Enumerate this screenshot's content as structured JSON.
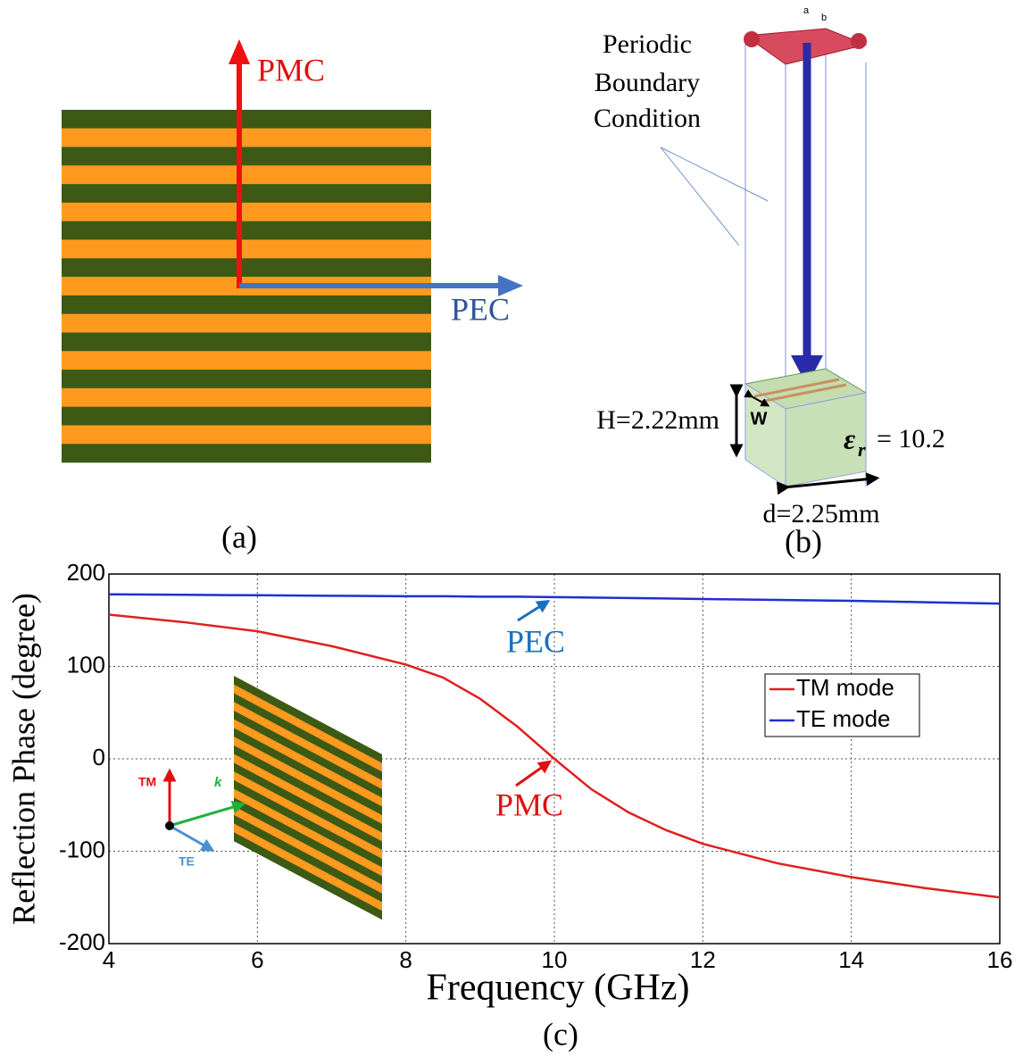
{
  "panel_a": {
    "pmc_label": "PMC",
    "pec_label": "PEC",
    "caption": "(a)"
  },
  "panel_b": {
    "boundary_label": [
      "Periodic",
      "Boundary",
      "Condition"
    ],
    "a_label": "a",
    "b_label": "b",
    "height_label": "H=2.22mm",
    "width_label": "W",
    "epsilon": "ε",
    "epsilon_sub": "r",
    "epsilon_value": "= 10.2",
    "period_label": "d=2.25mm",
    "caption": "(b)"
  },
  "chart_data": {
    "type": "line",
    "x_label": "Frequency (GHz)",
    "y_label": "Reflection Phase (degree)",
    "caption": "(c)",
    "x": [
      4,
      5,
      6,
      7,
      8,
      8.5,
      9,
      9.5,
      10,
      10.5,
      11,
      11.5,
      12,
      13,
      14,
      15,
      16
    ],
    "series": [
      {
        "name": "TM mode",
        "color": "#e02020",
        "values": [
          156,
          148,
          138,
          122,
          102,
          88,
          65,
          35,
          0,
          -33,
          -58,
          -77,
          -92,
          -113,
          -128,
          -140,
          -150
        ]
      },
      {
        "name": "TE mode",
        "color": "#1f2fd0",
        "values": [
          178,
          177.5,
          177,
          176.5,
          176,
          176,
          175.5,
          175.5,
          175,
          174.5,
          174,
          173.5,
          173,
          172,
          171,
          169.5,
          168
        ]
      }
    ],
    "xlim": [
      4,
      16
    ],
    "xticks": [
      4,
      6,
      8,
      10,
      12,
      14,
      16
    ],
    "ylim": [
      -200,
      200
    ],
    "yticks": [
      -200,
      -100,
      0,
      100,
      200
    ],
    "grid": true,
    "annotations": [
      "PEC",
      "PMC"
    ],
    "inset_labels": [
      "TM",
      "k",
      "TE"
    ]
  }
}
